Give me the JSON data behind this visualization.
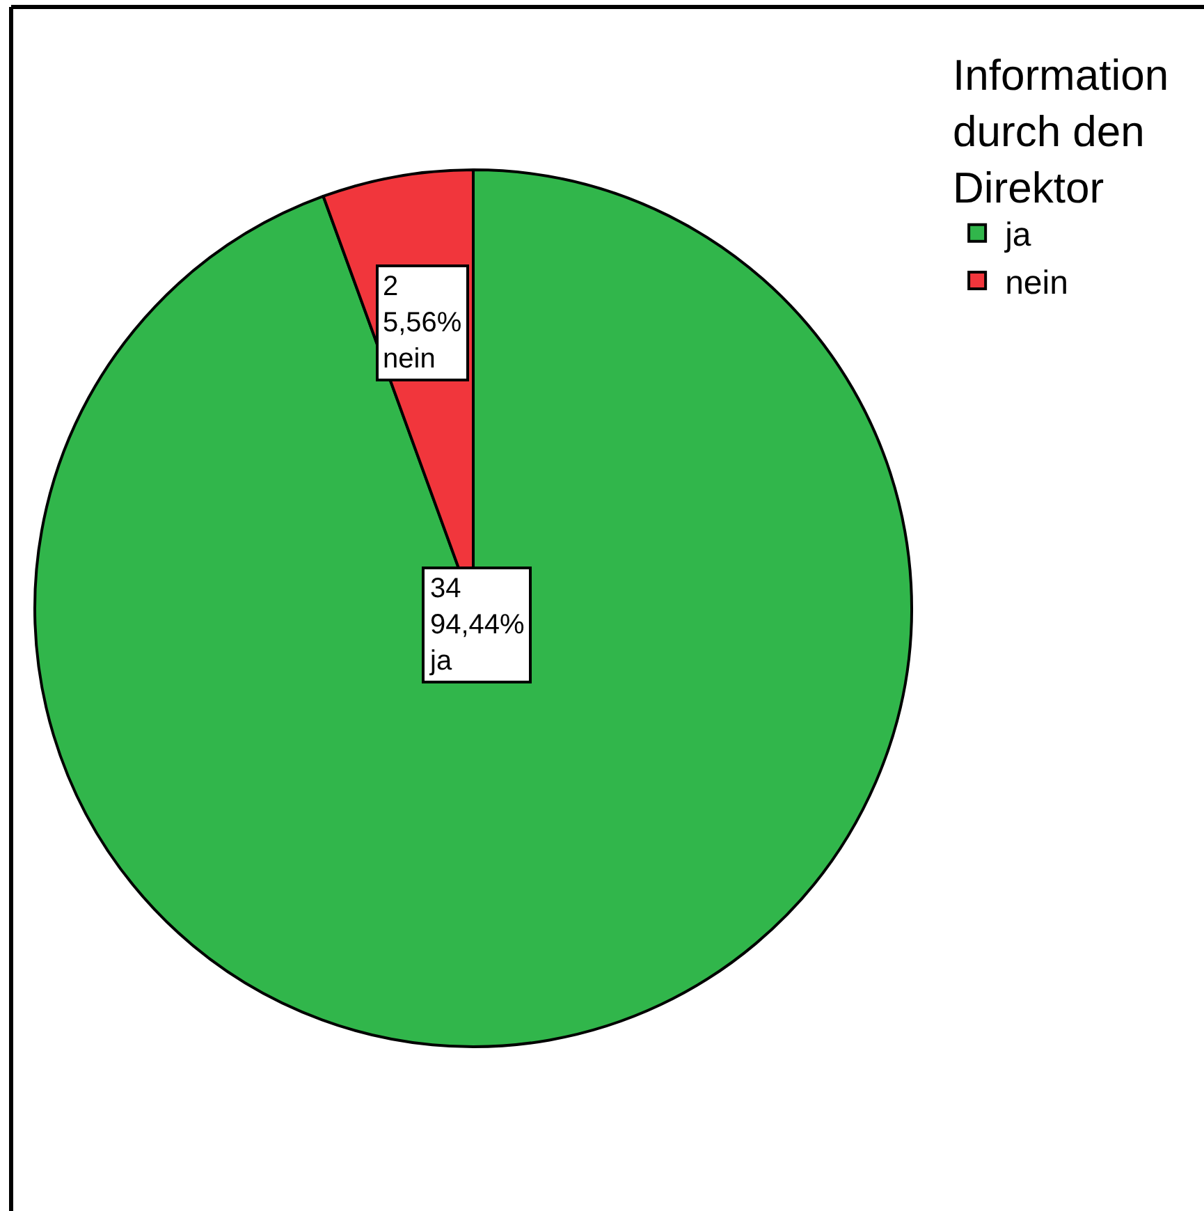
{
  "chart_data": {
    "type": "pie",
    "categories": [
      "ja",
      "nein"
    ],
    "values": [
      34,
      2
    ],
    "colors": [
      "#31b64b",
      "#f1363c"
    ],
    "value_labels": [
      "34\n94,44%\nja",
      "2\n5,56%\nnein"
    ],
    "legend_title": "Information durch den Direktor",
    "legend": "top right"
  }
}
